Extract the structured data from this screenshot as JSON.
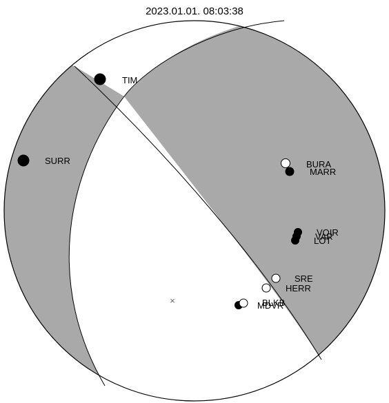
{
  "title": "2023.01.01. 08:03:38",
  "colors": {
    "compressional": "#a9a9a9",
    "dilatational": "#ffffff",
    "outline": "#000000",
    "polarity_up": "#000000",
    "polarity_down": "#ffffff"
  },
  "stations": [
    {
      "name": "TIM",
      "polarity": "up"
    },
    {
      "name": "SURR",
      "polarity": "up"
    },
    {
      "name": "BURA",
      "polarity": "down"
    },
    {
      "name": "MARR",
      "polarity": "up"
    },
    {
      "name": "VOIR",
      "polarity": "up"
    },
    {
      "name": "VAR",
      "polarity": "up"
    },
    {
      "name": "LOT",
      "polarity": "up"
    },
    {
      "name": "SRE",
      "polarity": "down"
    },
    {
      "name": "HERR",
      "polarity": "down"
    },
    {
      "name": "BLKB",
      "polarity": "down"
    },
    {
      "name": "MDVR",
      "polarity": "up"
    }
  ],
  "center_marker": "×"
}
